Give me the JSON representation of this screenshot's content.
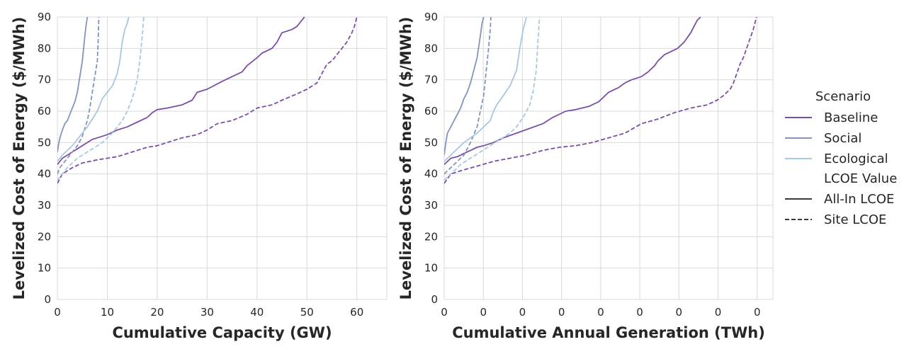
{
  "chart_data": [
    {
      "type": "line",
      "xlabel": "Cumulative Capacity (GW)",
      "ylabel": "Levelized Cost of Energy ($/MWh)",
      "xlim": [
        0,
        66
      ],
      "ylim": [
        0,
        90
      ],
      "xticks": [
        0,
        10,
        20,
        30,
        40,
        50,
        60
      ],
      "xtick_labels": [
        "0",
        "10",
        "20",
        "30",
        "40",
        "50",
        "60"
      ],
      "yticks": [
        0,
        10,
        20,
        30,
        40,
        50,
        60,
        70,
        80,
        90
      ],
      "ytick_labels": [
        "0",
        "10",
        "20",
        "30",
        "40",
        "50",
        "60",
        "70",
        "80",
        "90"
      ],
      "grid": true,
      "series": [
        {
          "scenario": "Baseline",
          "lcoe": "All-In LCOE",
          "color": "#7b4fa6",
          "dash": false,
          "x": [
            0,
            1,
            2,
            3,
            4,
            5,
            6,
            7,
            8,
            10,
            12,
            14,
            16,
            18,
            19,
            20,
            22,
            25,
            27,
            28,
            30,
            33,
            35,
            37,
            38,
            40,
            41,
            43,
            44,
            45,
            47,
            48,
            48.5,
            49,
            49.5
          ],
          "y": [
            43,
            45,
            46,
            47,
            48,
            49,
            50,
            51,
            51.5,
            52.5,
            54,
            55,
            56.5,
            58,
            59.5,
            60.5,
            61,
            62,
            63.5,
            66,
            67,
            69.5,
            71,
            72.5,
            74.5,
            77,
            78.5,
            80,
            82,
            85,
            86,
            87,
            88,
            89,
            90
          ]
        },
        {
          "scenario": "Baseline",
          "lcoe": "Site LCOE",
          "color": "#7b4fa6",
          "dash": true,
          "x": [
            0,
            1,
            2,
            3,
            5,
            8,
            10,
            12,
            15,
            18,
            20,
            23,
            25,
            28,
            30,
            32,
            35,
            38,
            40,
            43,
            45,
            48,
            50,
            52,
            53,
            54,
            55,
            56,
            57,
            58,
            59,
            59.5,
            60
          ],
          "y": [
            37,
            40,
            41,
            42,
            43.5,
            44.5,
            45,
            45.5,
            47,
            48.5,
            49,
            50.5,
            51.5,
            52.5,
            54,
            56,
            57,
            59,
            61,
            62,
            63.5,
            65.5,
            67,
            69,
            72,
            75,
            76,
            78,
            80,
            82,
            85,
            87,
            90
          ]
        },
        {
          "scenario": "Social",
          "lcoe": "All-In LCOE",
          "color": "#8294bf",
          "dash": false,
          "x": [
            0,
            0.3,
            0.6,
            1,
            1.5,
            2,
            2.5,
            3,
            3.5,
            4,
            4.5,
            5,
            5.5,
            5.8,
            6
          ],
          "y": [
            47,
            50,
            52,
            54,
            56,
            57,
            59,
            61,
            63,
            66,
            71,
            76,
            84,
            88,
            90
          ]
        },
        {
          "scenario": "Social",
          "lcoe": "Site LCOE",
          "color": "#8294bf",
          "dash": true,
          "x": [
            0,
            0.5,
            1,
            2,
            3,
            4,
            5,
            6,
            6.5,
            7,
            7.5,
            8,
            8.2,
            8.3
          ],
          "y": [
            40,
            42,
            43,
            45,
            47,
            49,
            52,
            57,
            61,
            66,
            71,
            76,
            84,
            90
          ]
        },
        {
          "scenario": "Ecological",
          "lcoe": "All-In LCOE",
          "color": "#a8c8e0",
          "dash": false,
          "x": [
            0,
            1,
            2,
            3,
            4,
            5,
            6,
            7,
            8,
            9,
            10,
            11,
            12,
            12.5,
            13,
            13.5,
            14,
            14.3
          ],
          "y": [
            44,
            46,
            47.5,
            49,
            51,
            53,
            55,
            57.5,
            60,
            64,
            66,
            68,
            72,
            76,
            82,
            86,
            88,
            90
          ]
        },
        {
          "scenario": "Ecological",
          "lcoe": "Site LCOE",
          "color": "#a8c8e0",
          "dash": true,
          "x": [
            0,
            1,
            2,
            3,
            4,
            5,
            6,
            7,
            8,
            9,
            10,
            11,
            12,
            13,
            14,
            15,
            16,
            16.5,
            17,
            17.3
          ],
          "y": [
            38,
            40,
            42,
            43.5,
            45,
            46,
            47,
            48,
            49,
            50,
            51.5,
            53,
            55,
            57,
            60,
            64,
            70,
            76,
            84,
            90
          ]
        }
      ]
    },
    {
      "type": "line",
      "xlabel": "Cumulative Annual Generation (TWh)",
      "ylabel": "Levelized Cost of Energy ($/MWh)",
      "xlim": [
        0,
        1
      ],
      "ylim": [
        0,
        90
      ],
      "xticks": [
        0,
        0.119,
        0.238,
        0.357,
        0.476,
        0.595,
        0.714,
        0.833,
        0.952
      ],
      "xtick_labels": [
        "0",
        "0",
        "0",
        "0",
        "0",
        "0",
        "0",
        "0",
        "0"
      ],
      "yticks": [
        0,
        10,
        20,
        30,
        40,
        50,
        60,
        70,
        80,
        90
      ],
      "ytick_labels": [
        "0",
        "10",
        "20",
        "30",
        "40",
        "50",
        "60",
        "70",
        "80",
        "90"
      ],
      "grid": true,
      "series": [
        {
          "scenario": "Baseline",
          "lcoe": "All-In LCOE",
          "color": "#7b4fa6",
          "dash": false,
          "x": [
            0,
            0.02,
            0.04,
            0.06,
            0.08,
            0.1,
            0.12,
            0.15,
            0.18,
            0.22,
            0.26,
            0.3,
            0.33,
            0.37,
            0.4,
            0.44,
            0.47,
            0.5,
            0.53,
            0.55,
            0.57,
            0.6,
            0.62,
            0.64,
            0.65,
            0.67,
            0.69,
            0.71,
            0.73,
            0.75,
            0.76,
            0.77,
            0.78
          ],
          "y": [
            43,
            45,
            45.5,
            46.5,
            47.5,
            48.5,
            49,
            50,
            51.5,
            53,
            54.5,
            56,
            58,
            60,
            60.5,
            61.5,
            63,
            66,
            67.5,
            69,
            70,
            71,
            72.5,
            74.5,
            76,
            78,
            79,
            80,
            82,
            85,
            87,
            89,
            90
          ]
        },
        {
          "scenario": "Baseline",
          "lcoe": "Site LCOE",
          "color": "#7b4fa6",
          "dash": true,
          "x": [
            0,
            0.02,
            0.05,
            0.1,
            0.15,
            0.2,
            0.25,
            0.3,
            0.35,
            0.4,
            0.45,
            0.5,
            0.55,
            0.6,
            0.65,
            0.7,
            0.75,
            0.8,
            0.83,
            0.85,
            0.86,
            0.87,
            0.88,
            0.89,
            0.9,
            0.91,
            0.92,
            0.93,
            0.94,
            0.95
          ],
          "y": [
            37,
            40,
            41,
            42.5,
            44,
            45,
            46,
            47.5,
            48.5,
            49,
            50,
            51.5,
            53,
            56,
            57.5,
            59.5,
            61,
            62,
            63.5,
            65,
            66,
            67,
            69,
            72,
            75,
            77,
            80,
            83,
            86,
            90
          ]
        },
        {
          "scenario": "Social",
          "lcoe": "All-In LCOE",
          "color": "#8294bf",
          "dash": false,
          "x": [
            0,
            0.005,
            0.01,
            0.02,
            0.03,
            0.04,
            0.05,
            0.06,
            0.07,
            0.08,
            0.09,
            0.1,
            0.11,
            0.115,
            0.12
          ],
          "y": [
            46,
            50,
            53,
            55,
            57,
            59,
            61,
            64,
            66,
            69,
            73,
            77,
            84,
            88,
            90
          ]
        },
        {
          "scenario": "Social",
          "lcoe": "Site LCOE",
          "color": "#8294bf",
          "dash": true,
          "x": [
            0,
            0.02,
            0.04,
            0.06,
            0.08,
            0.1,
            0.11,
            0.12,
            0.125,
            0.13,
            0.135,
            0.14,
            0.142
          ],
          "y": [
            40,
            42,
            44,
            46,
            50,
            55,
            60,
            65,
            70,
            75,
            80,
            86,
            90
          ]
        },
        {
          "scenario": "Ecological",
          "lcoe": "All-In LCOE",
          "color": "#a8c8e0",
          "dash": false,
          "x": [
            0,
            0.02,
            0.04,
            0.06,
            0.08,
            0.1,
            0.12,
            0.14,
            0.15,
            0.16,
            0.18,
            0.2,
            0.22,
            0.23,
            0.24,
            0.25
          ],
          "y": [
            44,
            46,
            48,
            50,
            51.5,
            53,
            55,
            57,
            60,
            62,
            65,
            68,
            73,
            80,
            86,
            90
          ]
        },
        {
          "scenario": "Ecological",
          "lcoe": "Site LCOE",
          "color": "#a8c8e0",
          "dash": true,
          "x": [
            0,
            0.02,
            0.05,
            0.08,
            0.11,
            0.14,
            0.17,
            0.2,
            0.22,
            0.24,
            0.26,
            0.27,
            0.28,
            0.285,
            0.29
          ],
          "y": [
            38,
            40,
            43,
            45,
            47,
            49,
            51,
            53,
            55,
            58,
            62,
            66,
            73,
            82,
            90
          ]
        }
      ]
    }
  ],
  "legend": {
    "placement": "right",
    "scenario_title": "Scenario",
    "scenarios": [
      {
        "label": "Baseline",
        "color": "#7b4fa6"
      },
      {
        "label": "Social",
        "color": "#8294bf"
      },
      {
        "label": "Ecological",
        "color": "#a8c8e0"
      }
    ],
    "lcoe_title": "LCOE Value",
    "lcoe_styles": [
      {
        "label": "All-In LCOE",
        "dash": false,
        "color": "#3a3a3a"
      },
      {
        "label": "Site LCOE",
        "dash": true,
        "color": "#3a3a3a"
      }
    ]
  }
}
